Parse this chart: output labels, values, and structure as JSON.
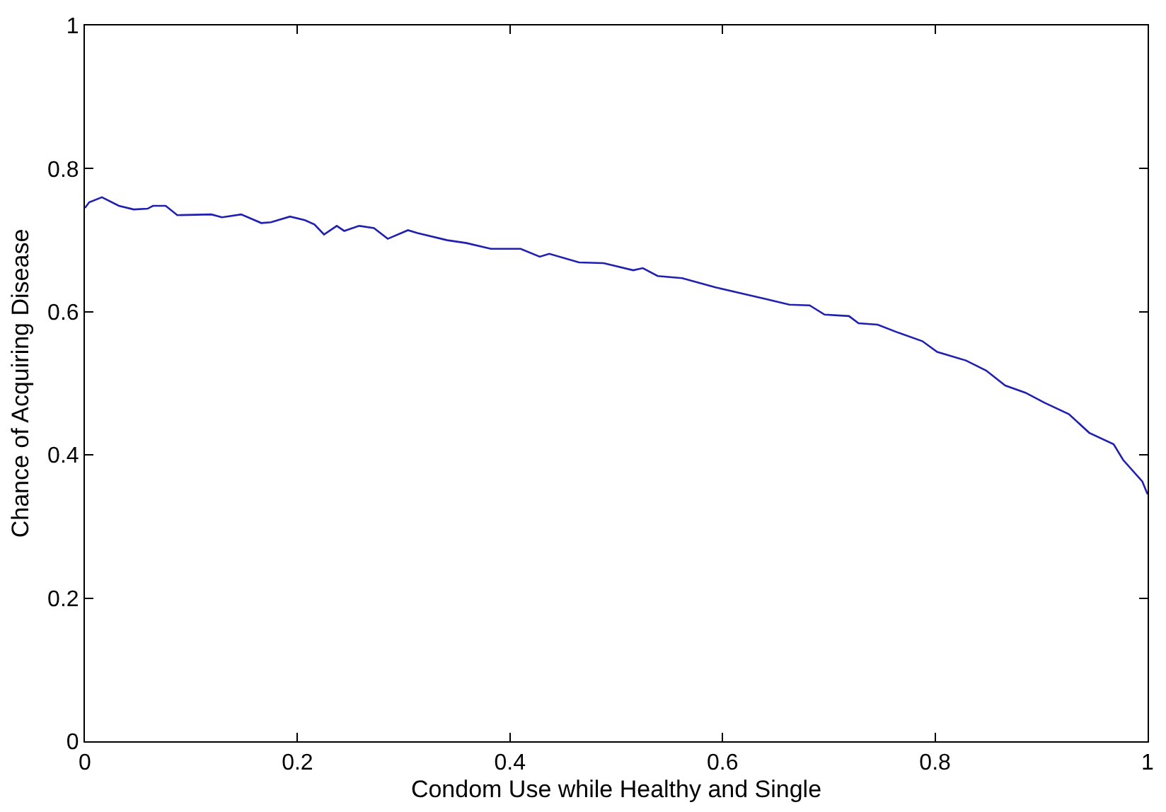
{
  "chart_data": {
    "type": "line",
    "xlabel": "Condom Use while Healthy and Single",
    "ylabel": "Chance of Acquiring Disease",
    "xlim": [
      0,
      1
    ],
    "ylim": [
      0,
      1
    ],
    "xticks": [
      0,
      0.2,
      0.4,
      0.6,
      0.8,
      1
    ],
    "yticks": [
      0,
      0.2,
      0.4,
      0.6,
      0.8,
      1
    ],
    "marker": "none",
    "line_style": "solid",
    "x": [
      0,
      0.004,
      0.016,
      0.032,
      0.046,
      0.059,
      0.064,
      0.076,
      0.087,
      0.119,
      0.129,
      0.147,
      0.166,
      0.175,
      0.193,
      0.207,
      0.216,
      0.225,
      0.237,
      0.244,
      0.258,
      0.272,
      0.285,
      0.304,
      0.313,
      0.341,
      0.359,
      0.382,
      0.41,
      0.428,
      0.437,
      0.465,
      0.488,
      0.516,
      0.525,
      0.539,
      0.562,
      0.594,
      0.617,
      0.64,
      0.663,
      0.682,
      0.696,
      0.719,
      0.728,
      0.746,
      0.765,
      0.788,
      0.802,
      0.829,
      0.848,
      0.866,
      0.885,
      0.903,
      0.926,
      0.945,
      0.968,
      0.977,
      0.995,
      1
    ],
    "series": [
      {
        "color": "#2020b0",
        "values": [
          0.745,
          0.753,
          0.76,
          0.748,
          0.743,
          0.744,
          0.748,
          0.748,
          0.735,
          0.736,
          0.732,
          0.736,
          0.724,
          0.725,
          0.733,
          0.728,
          0.722,
          0.708,
          0.72,
          0.713,
          0.72,
          0.717,
          0.702,
          0.714,
          0.71,
          0.7,
          0.696,
          0.688,
          0.688,
          0.677,
          0.681,
          0.669,
          0.668,
          0.658,
          0.661,
          0.65,
          0.647,
          0.634,
          0.626,
          0.618,
          0.61,
          0.609,
          0.596,
          0.594,
          0.584,
          0.582,
          0.571,
          0.559,
          0.544,
          0.532,
          0.518,
          0.497,
          0.487,
          0.473,
          0.457,
          0.431,
          0.415,
          0.393,
          0.363,
          0.345
        ]
      }
    ]
  }
}
